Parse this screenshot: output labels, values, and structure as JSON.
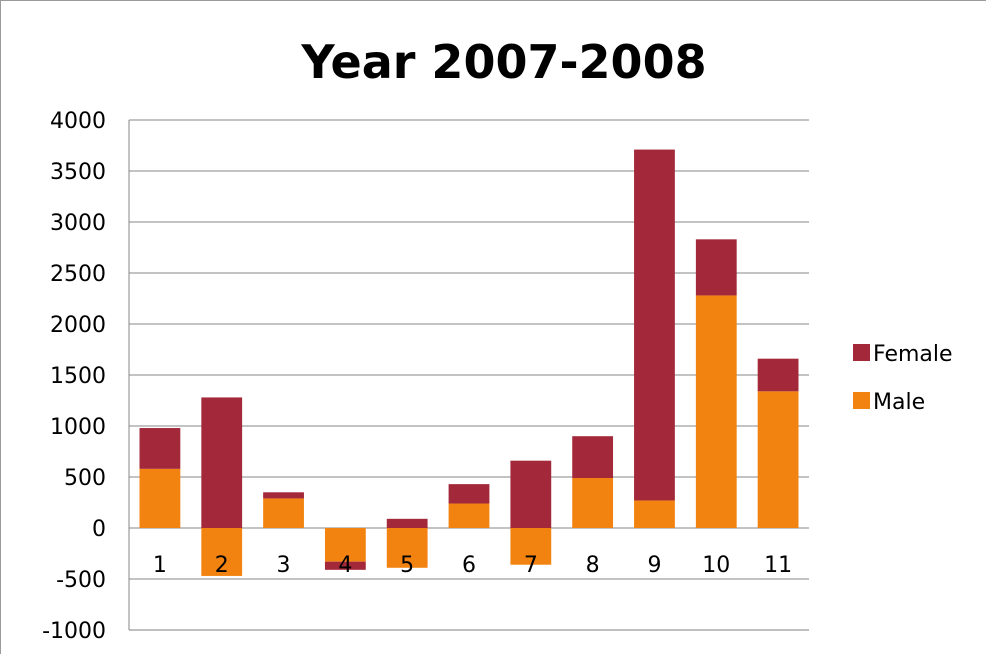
{
  "chart_data": {
    "type": "bar",
    "stacked": true,
    "title": "Year 2007-2008",
    "categories": [
      "1",
      "2",
      "3",
      "4",
      "5",
      "6",
      "7",
      "8",
      "9",
      "10",
      "11"
    ],
    "series": [
      {
        "name": "Male",
        "color": "#f28310",
        "values": [
          580,
          -470,
          290,
          -330,
          -390,
          240,
          -360,
          490,
          270,
          2280,
          1340
        ]
      },
      {
        "name": "Female",
        "color": "#a3283a",
        "values": [
          400,
          1280,
          60,
          -80,
          90,
          190,
          660,
          410,
          3440,
          550,
          320
        ]
      }
    ],
    "ylim": [
      -1000,
      4000
    ],
    "yticks": [
      4000,
      3500,
      3000,
      2500,
      2000,
      1500,
      1000,
      500,
      0,
      -500,
      -1000
    ],
    "grid": true,
    "legend_position": "right",
    "legend_order": [
      "Female",
      "Male"
    ]
  }
}
